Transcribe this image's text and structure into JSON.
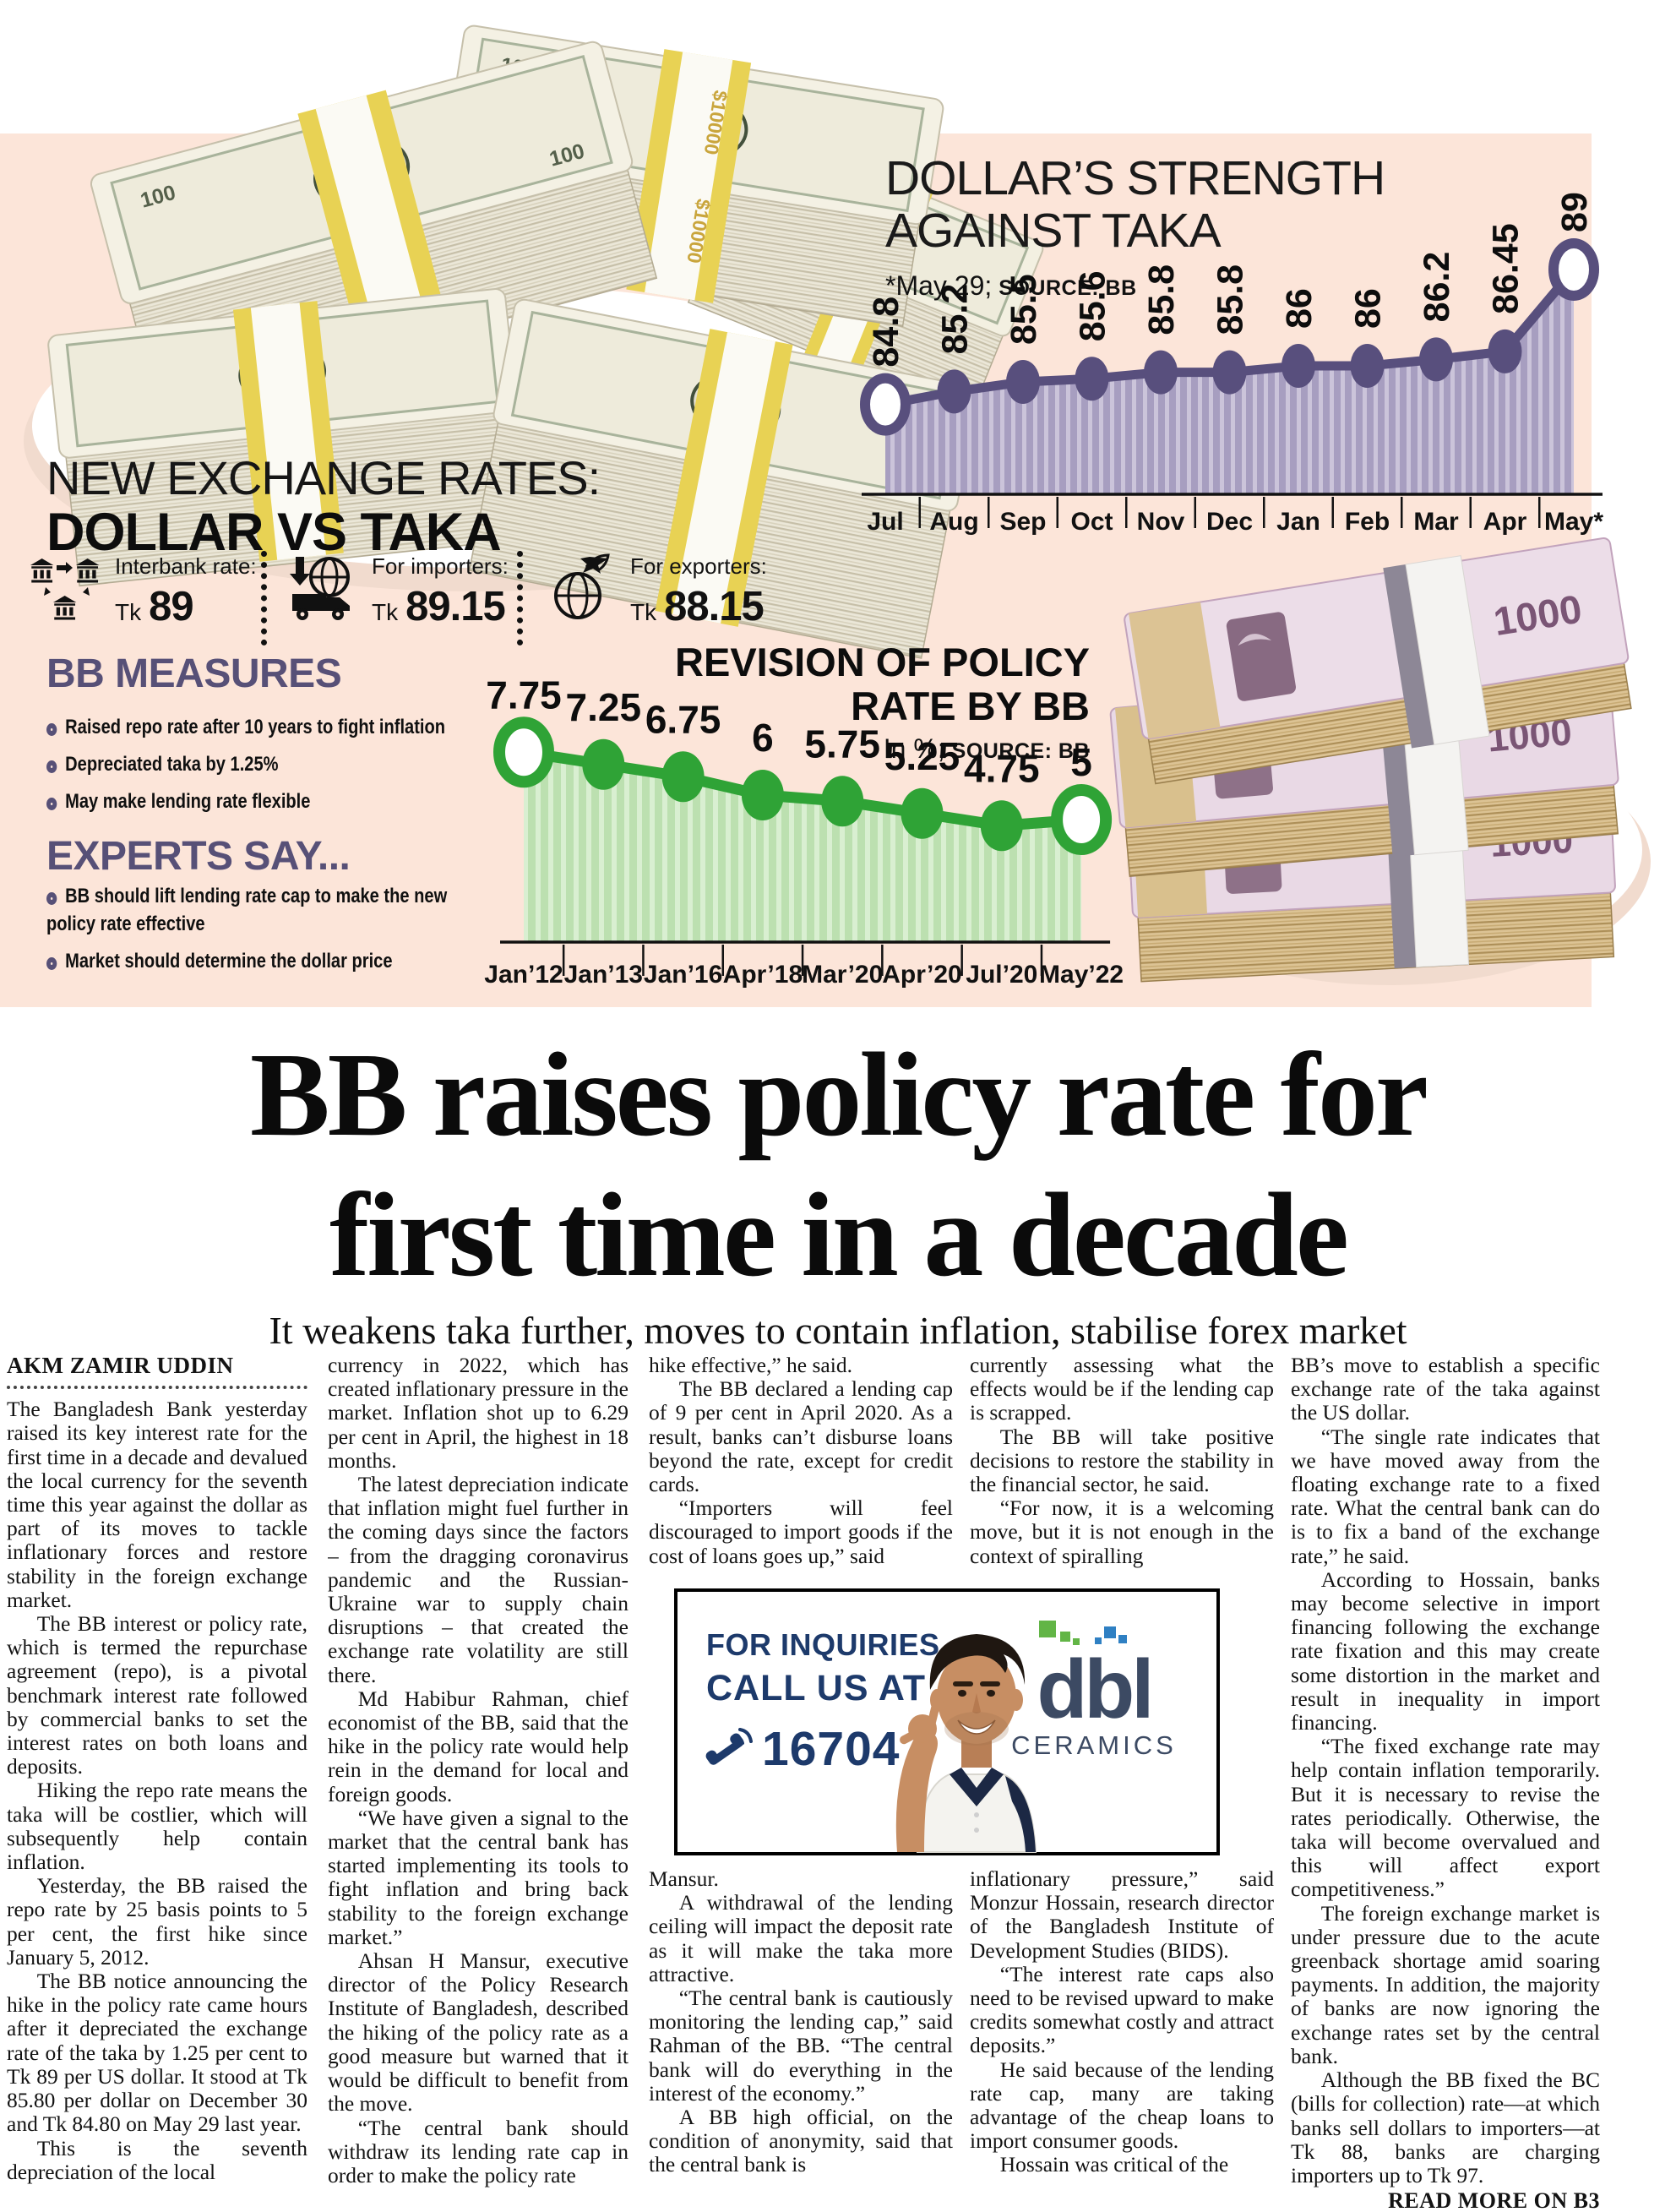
{
  "page": {
    "panel_bg": "#fce5d9"
  },
  "infographic": {
    "accent_purple": "#575077",
    "exchange_title_light": "NEW EXCHANGE RATES:",
    "exchange_title_bold": "DOLLAR VS TAKA",
    "exchange_items": [
      {
        "icon": "interbank-icon",
        "label": "Interbank rate:",
        "prefix": "Tk",
        "value": "89"
      },
      {
        "icon": "importers-icon",
        "label": "For importers:",
        "prefix": "Tk",
        "value": "89.15"
      },
      {
        "icon": "exporters-icon",
        "label": "For exporters:",
        "prefix": "Tk",
        "value": "88.15"
      }
    ],
    "measures_title": "BB MEASURES",
    "measures_bullets": [
      "Raised repo rate after 10 years to fight inflation",
      "Depreciated taka by 1.25%",
      "May make lending rate flexible"
    ],
    "experts_title": "EXPERTS SAY...",
    "experts_bullets": [
      "BB should lift lending rate cap to make the new policy rate effective",
      "Market should determine the dollar price"
    ]
  },
  "chart_data": [
    {
      "type": "area",
      "title": "DOLLAR’S STRENGTH AGAINST TAKA",
      "note_light": "*May 29;",
      "note_bold": "SOURCE: BB",
      "categories": [
        "Jul",
        "Aug",
        "Sep",
        "Oct",
        "Nov",
        "Dec",
        "Jan",
        "Feb",
        "Mar",
        "Apr",
        "May*"
      ],
      "values": [
        84.8,
        85.2,
        85.5,
        85.6,
        85.8,
        85.8,
        86,
        86,
        86.2,
        86.45,
        89
      ],
      "ylim": [
        82,
        90
      ],
      "xlabel": "",
      "ylabel": "",
      "grid": false,
      "legend_position": "none",
      "line_color": "#584f7d",
      "stripe_dark": "#a79ec0",
      "stripe_light": "#cbc4da",
      "value_label_rotated": true
    },
    {
      "type": "area",
      "title": "REVISION OF POLICY RATE BY BB",
      "note_light": "In %;",
      "note_bold": "SOURCE: BB",
      "categories": [
        "Jan’12",
        "Jan’13",
        "Jan’16",
        "Apr’18",
        "Mar’20",
        "Apr’20",
        "Jul’20",
        "May’22"
      ],
      "values": [
        7.75,
        7.25,
        6.75,
        6,
        5.75,
        5.25,
        4.75,
        5
      ],
      "ylim": [
        0,
        8
      ],
      "xlabel": "",
      "ylabel": "",
      "grid": false,
      "legend_position": "none",
      "line_color": "#2fa336",
      "stripe_dark": "#bce0b0",
      "stripe_light": "#d9efd1",
      "value_label_rotated": false
    }
  ],
  "money": {
    "dollar_band_label": "$10000",
    "dollar_denomination": "100",
    "taka_denomination": "1000"
  },
  "headline": {
    "line1": "BB raises policy rate for",
    "line2": "first time in a decade",
    "subhead": "It weakens taka further, moves to contain inflation, stabilise forex market"
  },
  "article": {
    "byline": "AKM ZAMIR UDDIN",
    "col1": [
      "The Bangladesh Bank yesterday raised its key interest rate for the first time in a decade and devalued the local currency for the seventh time this year against the dollar as part of its moves to tackle inflationary forces and restore stability in the foreign exchange market.",
      "The BB interest or policy rate, which is termed the repurchase agreement (repo), is a pivotal benchmark interest rate followed by commercial banks to set the interest rates on both loans and deposits.",
      "Hiking the repo rate means the taka will be costlier, which will subsequently help contain inflation.",
      "Yesterday, the BB raised the repo rate by 25 basis points to 5 per cent, the first hike since January 5, 2012.",
      "The BB notice announcing the hike in the policy rate came hours after it depreciated the exchange rate of the taka by 1.25 per cent to Tk 89 per US dollar. It stood at Tk 85.80 per dollar on December 30 and Tk 84.80 on May 29 last year.",
      "This is the seventh depreciation of the local"
    ],
    "col2": [
      "currency in 2022, which has created inflationary pressure in the market. Inflation shot up to 6.29 per cent in April, the highest in 18 months.",
      "The latest depreciation indicate that inflation might fuel further in the coming days since the factors – from the dragging coronavirus pandemic and the Russian-Ukraine war to supply chain disruptions – that created the exchange rate volatility are still there.",
      "Md Habibur Rahman, chief economist of the BB, said that the hike in the policy rate would help rein in the demand for local and foreign goods.",
      "“We have given a signal to the market that the central bank has started implementing its tools to fight inflation and bring back stability to the foreign exchange market.”",
      "Ahsan H Mansur, executive director of the Policy Research Institute of Bangladesh, described the hiking of the policy rate as a good measure but warned that it would be difficult to benefit from the move.",
      "“The central bank should withdraw its lending rate cap in order to make the policy rate"
    ],
    "col3a": [
      "hike effective,” he said.",
      "The BB declared a lending cap of 9 per cent in April 2020. As a result, banks can’t disburse loans beyond the rate, except for credit cards.",
      "“Importers will feel discouraged to import goods if the cost of loans goes up,” said"
    ],
    "col3b": [
      "Mansur.",
      "A withdrawal of the lending ceiling will impact the deposit rate as it will make the taka more attractive.",
      "“The central bank is cautiously monitoring the lending cap,” said Rahman of the BB. “The central bank will do everything in the interest of the economy.”",
      "A BB high official, on the condition of anonymity, said that the central bank is"
    ],
    "col4a": [
      "currently assessing what the effects would be if the lending cap is scrapped.",
      "The BB will take positive decisions to restore the stability in the financial sector, he said.",
      "“For now, it is a welcoming move, but it is not enough in the context of spiralling"
    ],
    "col4b": [
      "inflationary pressure,” said Monzur Hossain, research director of the Bangladesh Institute of Development Studies (BIDS).",
      "“The interest rate caps also need to be revised upward to make credits somewhat costly and attract deposits.”",
      "He said because of the lending rate cap, many are taking advantage of the cheap loans to import consumer goods.",
      "Hossain was critical of the"
    ],
    "col5": [
      "BB’s move to establish a specific exchange rate of the taka against the US dollar.",
      "“The single rate indicates that we have moved away from the floating exchange rate to a fixed rate. What the central bank can do is to fix a band of the exchange rate,” he said.",
      "According to Hossain, banks may become selective in import financing following the exchange rate fixation and this may create some distortion in the market and result in inequality in import financing.",
      "“The fixed exchange rate may help contain inflation temporarily. But it is necessary to revise the rates periodically. Otherwise, the taka will become overvalued and this will affect export competitiveness.”",
      "The foreign exchange market is under pressure due to the acute greenback shortage amid soaring payments. In addition, the majority of banks are now ignoring the exchange rates set by the central bank.",
      "Although the BB fixed the BC (bills for collection) rate—at which banks sell dollars to importers—at Tk 88, banks are charging importers up to Tk 97."
    ],
    "read_more": "READ MORE ON B3"
  },
  "ad": {
    "navy": "#1d3a6b",
    "line1": "FOR INQUIRIES",
    "line2": "CALL US AT",
    "phone": "16704",
    "brand": "dbl",
    "brand_sub": "CERAMICS"
  }
}
